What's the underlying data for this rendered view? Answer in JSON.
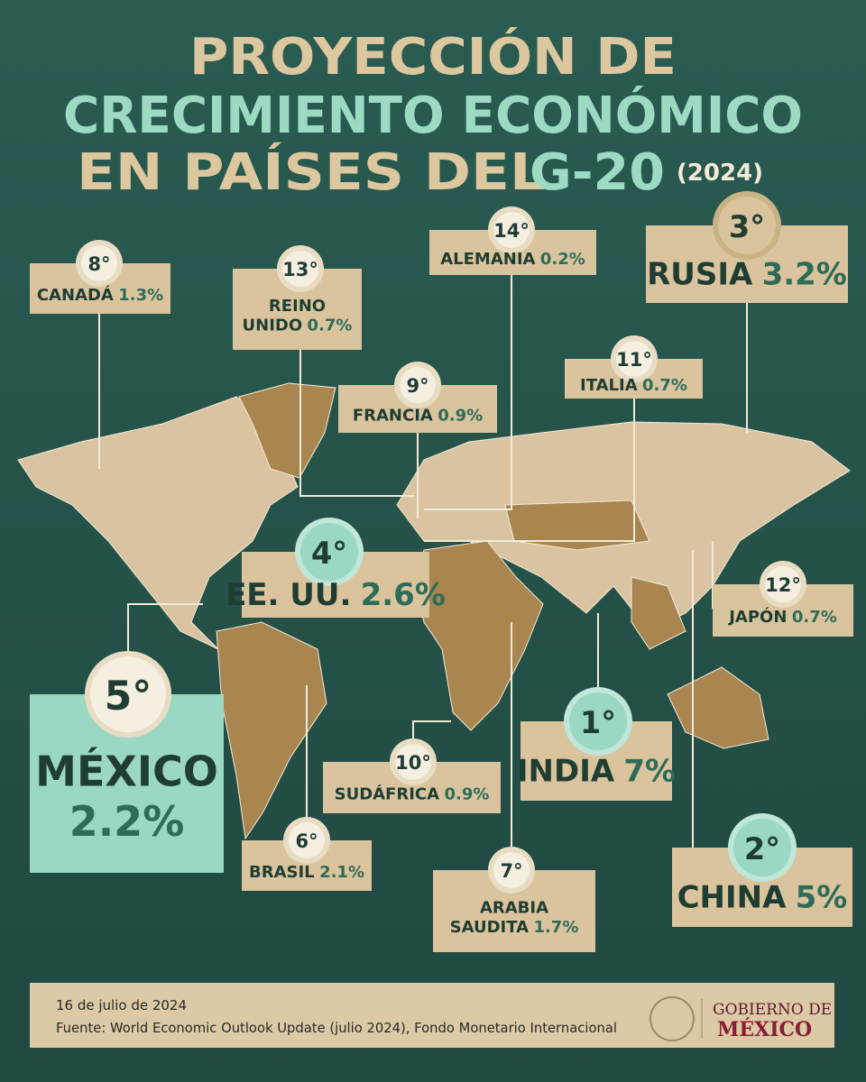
{
  "header": {
    "title_lines": [
      "PROYECCIÓN DE",
      "CRECIMIENTO ECONÓMICO",
      "EN PAÍSES DEL"
    ],
    "title_highlight": "G-20",
    "year": "(2024)"
  },
  "countries": [
    {
      "rank": "8°",
      "name": [
        "CANADÁ"
      ],
      "growth": "1.3%"
    },
    {
      "rank": "13°",
      "name": [
        "REINO",
        "UNIDO"
      ],
      "growth": "0.7%"
    },
    {
      "rank": "14°",
      "name": [
        "ALEMANIA"
      ],
      "growth": "0.2%"
    },
    {
      "rank": "3°",
      "name": [
        "RUSIA"
      ],
      "growth": "3.2%"
    },
    {
      "rank": "11°",
      "name": [
        "ITALIA"
      ],
      "growth": "0.7%"
    },
    {
      "rank": "9°",
      "name": [
        "FRANCIA"
      ],
      "growth": "0.9%"
    },
    {
      "rank": "4°",
      "name": [
        "EE. UU."
      ],
      "growth": "2.6%"
    },
    {
      "rank": "5°",
      "name": [
        "MÉXICO"
      ],
      "growth": "2.2%"
    },
    {
      "rank": "12°",
      "name": [
        "JAPÓN"
      ],
      "growth": "0.7%"
    },
    {
      "rank": "1°",
      "name": [
        "INDIA"
      ],
      "growth": "7%"
    },
    {
      "rank": "10°",
      "name": [
        "SUDÁFRICA"
      ],
      "growth": "0.9%"
    },
    {
      "rank": "6°",
      "name": [
        "BRASIL"
      ],
      "growth": "2.1%"
    },
    {
      "rank": "7°",
      "name": [
        "ARABIA",
        "SAUDITA"
      ],
      "growth": "1.7%"
    },
    {
      "rank": "2°",
      "name": [
        "CHINA"
      ],
      "growth": "5%"
    }
  ],
  "footer": {
    "date": "16 de julio de 2024",
    "source": "Fuente: World Economic Outlook Update (julio 2024), Fondo Monetario Internacional",
    "logo_top": "GOBIERNO DE",
    "logo_bottom": "MÉXICO"
  }
}
